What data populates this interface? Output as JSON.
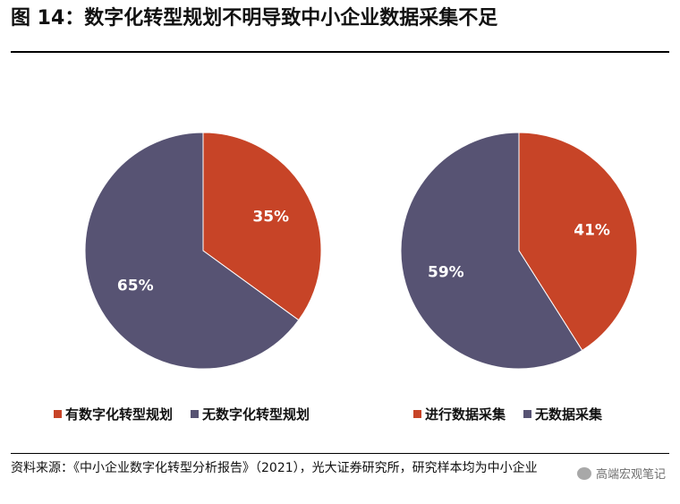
{
  "title": "图 14：数字化转型规划不明导致中小企业数据采集不足",
  "source": "资料来源：《中小企业数字化转型分析报告》（2021），光大证券研究所，研究样本均为中小企业",
  "watermark": "高端宏观笔记",
  "chart_data": [
    {
      "type": "pie",
      "slices": [
        {
          "label": "有数字化转型规划",
          "value": 35,
          "display": "35%",
          "color": "#c74427"
        },
        {
          "label": "无数字化转型规划",
          "value": 65,
          "display": "65%",
          "color": "#575373"
        }
      ]
    },
    {
      "type": "pie",
      "slices": [
        {
          "label": "进行数据采集",
          "value": 41,
          "display": "41%",
          "color": "#c74427"
        },
        {
          "label": "无数据采集",
          "value": 59,
          "display": "59%",
          "color": "#575373"
        }
      ]
    }
  ]
}
